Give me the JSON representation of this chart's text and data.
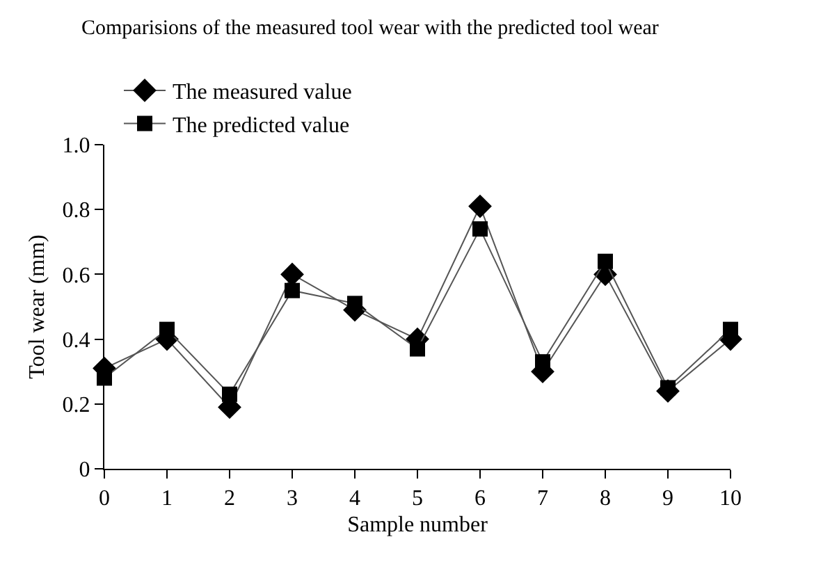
{
  "chart_data": {
    "type": "line",
    "title": "Comparisions of the measured tool wear with the predicted tool wear",
    "xlabel": "Sample number",
    "ylabel": "Tool wear (mm)",
    "x": [
      0,
      1,
      2,
      3,
      4,
      5,
      6,
      7,
      8,
      9,
      10
    ],
    "series": [
      {
        "name": "The measured value",
        "color": "#000000",
        "marker": "diamond",
        "values": [
          0.31,
          0.4,
          0.19,
          0.6,
          0.49,
          0.4,
          0.81,
          0.3,
          0.6,
          0.24,
          0.4
        ]
      },
      {
        "name": "The predicted value",
        "color": "#000000",
        "marker": "square",
        "values": [
          0.28,
          0.43,
          0.23,
          0.55,
          0.51,
          0.37,
          0.74,
          0.33,
          0.64,
          0.25,
          0.43
        ]
      }
    ],
    "xlim": [
      0,
      10
    ],
    "xticks": [
      0,
      1,
      2,
      3,
      4,
      5,
      6,
      7,
      8,
      9,
      10
    ],
    "ylim": [
      0,
      1.0
    ],
    "yticks": [
      {
        "value": 0,
        "label": "0"
      },
      {
        "value": 0.2,
        "label": "0.2"
      },
      {
        "value": 0.4,
        "label": "0.4"
      },
      {
        "value": 0.6,
        "label": "0.6"
      },
      {
        "value": 0.8,
        "label": "0.8"
      },
      {
        "value": 1.0,
        "label": "1.0"
      }
    ],
    "legend": "top left",
    "line_style": "solid"
  }
}
